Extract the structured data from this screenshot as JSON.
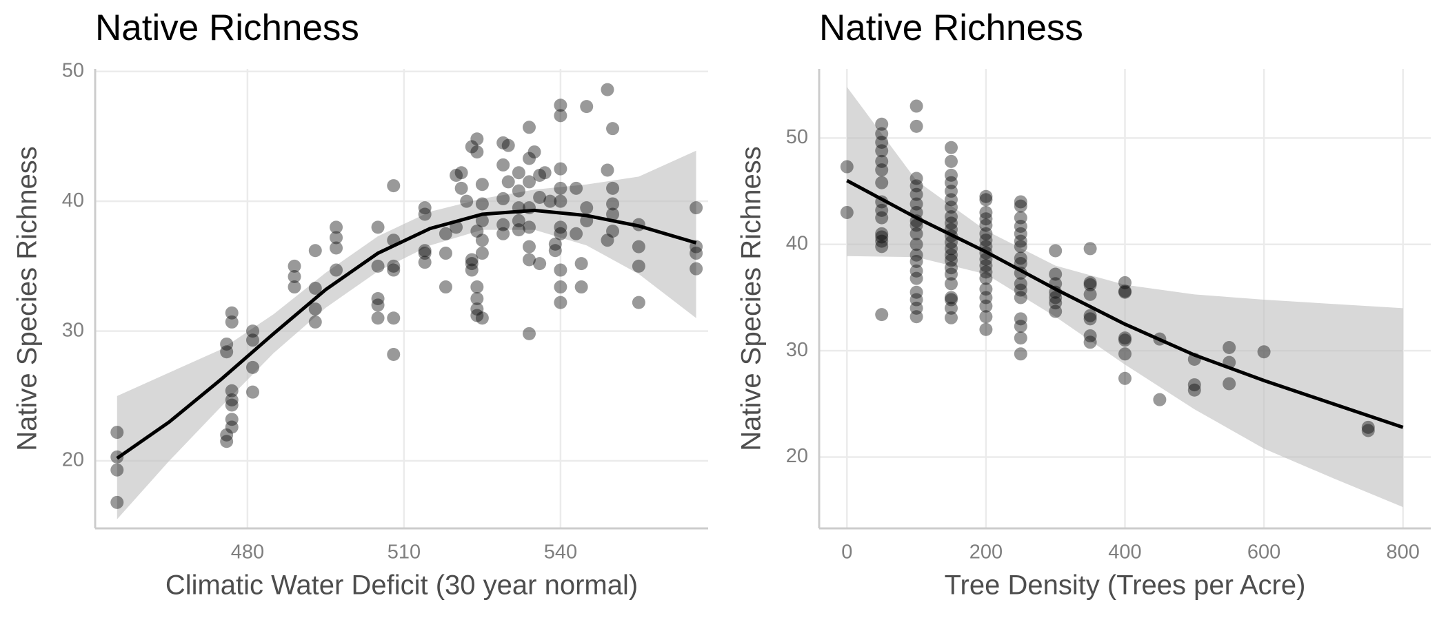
{
  "chart_data": [
    {
      "type": "scatter",
      "title": "Native Richness",
      "x_label": "Climatic Water Deficit (30 year normal)",
      "y_label": "Native Species Richness",
      "xlim": [
        450.8,
        568.3
      ],
      "ylim": [
        14.8,
        50.2
      ],
      "xticks": [
        480,
        510,
        540
      ],
      "yticks": [
        20,
        30,
        40,
        50
      ],
      "grid": true,
      "point_color": "#000000",
      "line_color": "#000000",
      "band_color": "#bebebe",
      "points": {
        "x": [
          455,
          455,
          455,
          455,
          476,
          476,
          476,
          476,
          477,
          477,
          477,
          477,
          477,
          477,
          477,
          481,
          481,
          481,
          481,
          489,
          489,
          489,
          493,
          493,
          493,
          493,
          497,
          497,
          497,
          497,
          505,
          505,
          505,
          505,
          505,
          508,
          508,
          508,
          508,
          508,
          508,
          514,
          514,
          514,
          514,
          514,
          518,
          518,
          518,
          520,
          520,
          521,
          521,
          522,
          523,
          524,
          524,
          523,
          523,
          523,
          524,
          524,
          524,
          524,
          525,
          525,
          525,
          525,
          524,
          525,
          525,
          529,
          530,
          529,
          530,
          529,
          529,
          529,
          532,
          532,
          532,
          532,
          532,
          534,
          534,
          534,
          534,
          534,
          534,
          534,
          534,
          535,
          536,
          536,
          536,
          537,
          538,
          539,
          539,
          540,
          540,
          540,
          540,
          540,
          540,
          540,
          540,
          540,
          540,
          543,
          543,
          544,
          544,
          545,
          545,
          545,
          549,
          549,
          549,
          550,
          550,
          550,
          550,
          550,
          555,
          555,
          555,
          555,
          566,
          566,
          566,
          566
        ],
        "y": [
          22.2,
          20.3,
          19.3,
          16.8,
          29,
          28.4,
          22,
          21.5,
          31.4,
          30.7,
          25.4,
          24.7,
          24.3,
          23.2,
          22.6,
          30,
          29.3,
          27.2,
          25.3,
          35,
          34.2,
          33.4,
          36.2,
          33.3,
          31.7,
          30.7,
          38,
          37.2,
          36.4,
          34.7,
          38,
          35,
          32.5,
          32,
          31,
          41.2,
          37,
          35,
          34.7,
          31,
          28.2,
          39.5,
          39,
          36.2,
          36,
          35.3,
          33.4,
          36,
          37.5,
          42,
          38,
          42.2,
          41,
          40,
          44.2,
          44.8,
          43.8,
          35.5,
          35.2,
          34.7,
          33.4,
          32.5,
          31.7,
          31.2,
          31,
          41.3,
          39.8,
          38.5,
          37.7,
          37,
          36,
          44.5,
          44.3,
          42.8,
          41.5,
          40.2,
          38.2,
          37.5,
          42.2,
          40.8,
          39.5,
          38.5,
          37.8,
          45.7,
          43.3,
          41.5,
          39.5,
          38,
          36.5,
          35.5,
          29.8,
          43.8,
          42,
          40.3,
          35.2,
          42.2,
          40,
          36.7,
          36.2,
          47.4,
          46.6,
          42.5,
          41,
          40,
          38,
          37.5,
          34.7,
          33.4,
          32.2,
          41,
          37.5,
          35.2,
          33.4,
          47.3,
          39.5,
          38.5,
          48.6,
          42.4,
          37,
          45.6,
          41,
          39.8,
          39,
          37.7,
          38.2,
          36.5,
          35,
          32.2,
          39.5,
          36.5,
          36,
          34.8
        ]
      },
      "smooth": {
        "x": [
          455,
          465,
          475,
          485,
          495,
          505,
          515,
          525,
          535,
          545,
          555,
          566
        ],
        "y": [
          20.2,
          23,
          26.3,
          29.8,
          33.2,
          36,
          37.9,
          39,
          39.3,
          38.9,
          38.1,
          36.8
        ],
        "lower": [
          15.5,
          20,
          24.2,
          28.3,
          31.8,
          34.6,
          36.6,
          37.8,
          37.8,
          36.6,
          34.4,
          31
        ],
        "upper": [
          25,
          26.8,
          28.6,
          31.3,
          34.5,
          37.3,
          39.2,
          40.2,
          40.9,
          41.3,
          41.9,
          43.9
        ]
      }
    },
    {
      "type": "scatter",
      "title": "Native Richness",
      "x_label": "Tree Density (Trees per Acre)",
      "y_label": "Native Species Richness",
      "xlim": [
        -40,
        840
      ],
      "ylim": [
        13.3,
        56.5
      ],
      "xticks": [
        0,
        200,
        400,
        600,
        800
      ],
      "yticks": [
        20,
        30,
        40,
        50
      ],
      "grid": true,
      "point_color": "#000000",
      "line_color": "#000000",
      "band_color": "#bebebe",
      "points": {
        "x": [
          0,
          0,
          50,
          50,
          50,
          50,
          50,
          50,
          50,
          50,
          50,
          50,
          50,
          50,
          50,
          50,
          50,
          100,
          100,
          100,
          100,
          100,
          100,
          100,
          100,
          100,
          100,
          100,
          100,
          100,
          100,
          100,
          100,
          100,
          100,
          100,
          150,
          150,
          150,
          150,
          150,
          150,
          150,
          150,
          150,
          150,
          150,
          150,
          150,
          150,
          150,
          150,
          150,
          150,
          150,
          150,
          150,
          150,
          200,
          200,
          200,
          200,
          200,
          200,
          200,
          200,
          200,
          200,
          200,
          200,
          200,
          200,
          200,
          200,
          200,
          200,
          250,
          250,
          250,
          250,
          250,
          250,
          250,
          250,
          250,
          250,
          250,
          250,
          250,
          250,
          250,
          250,
          250,
          300,
          300,
          300,
          300,
          300,
          300,
          300,
          350,
          350,
          350,
          350,
          350,
          350,
          350,
          350,
          400,
          400,
          400,
          400,
          400,
          400,
          400,
          450,
          450,
          500,
          500,
          500,
          550,
          550,
          550,
          600,
          750,
          750
        ],
        "y": [
          47.3,
          43,
          51.3,
          50.4,
          49.6,
          48.8,
          47.8,
          47,
          45.8,
          44,
          43.2,
          42.5,
          41,
          40.7,
          40.3,
          39.8,
          33.4,
          53,
          51.1,
          46.2,
          45.5,
          44.7,
          43.8,
          43,
          42.2,
          41.8,
          41,
          40,
          39,
          38.4,
          37.5,
          36.8,
          35.5,
          34.8,
          34,
          33.2,
          49.1,
          47.8,
          46.5,
          45.8,
          45,
          44.2,
          43.5,
          42.6,
          42,
          41.4,
          40.8,
          40.2,
          39.6,
          39,
          38.5,
          37.8,
          37.2,
          36.3,
          35,
          34.8,
          34,
          33.1,
          44.5,
          44.2,
          43,
          42.4,
          41.8,
          41,
          40.4,
          39.8,
          39.2,
          38.6,
          38,
          37.4,
          36.8,
          35.8,
          35,
          34.2,
          33.2,
          32,
          44,
          43.6,
          42.5,
          41.7,
          41,
          40.3,
          39.8,
          38.7,
          38.2,
          37.3,
          36.3,
          35.7,
          35,
          33,
          32.3,
          31.2,
          29.7,
          39.4,
          37.2,
          36.3,
          35.5,
          35,
          34.5,
          33.7,
          39.6,
          36.4,
          36.2,
          35.3,
          33.3,
          33,
          31.4,
          30.8,
          36.4,
          35.6,
          35.5,
          31.2,
          31,
          29.7,
          27.4,
          31.1,
          25.4,
          29.2,
          26.8,
          26.3,
          30.3,
          28.9,
          26.9,
          29.9,
          22.8,
          22.5
        ]
      },
      "smooth": {
        "x": [
          0,
          100,
          200,
          300,
          400,
          500,
          600,
          700,
          800
        ],
        "y": [
          46,
          42.5,
          39.3,
          35.8,
          32.5,
          29.6,
          27.2,
          25,
          22.8
        ],
        "lower": [
          38.9,
          38.8,
          37.2,
          33.2,
          28.7,
          24.5,
          20.8,
          18,
          15.3
        ],
        "upper": [
          54.8,
          46,
          41.3,
          38,
          36.2,
          35.3,
          34.8,
          34.4,
          34
        ]
      }
    }
  ]
}
